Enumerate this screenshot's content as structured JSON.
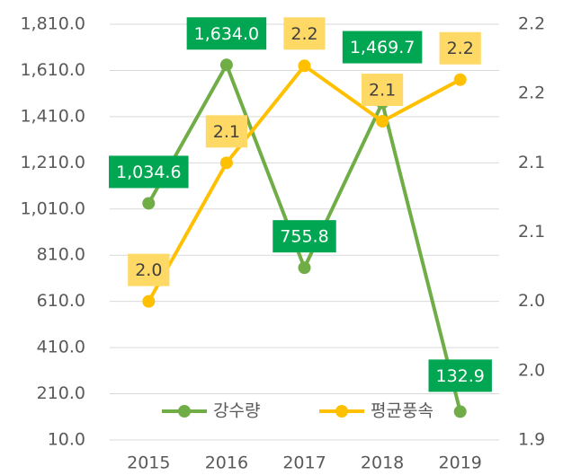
{
  "chart_data": {
    "type": "line",
    "categories": [
      "2015",
      "2016",
      "2017",
      "2018",
      "2019"
    ],
    "series": [
      {
        "name": "강수량",
        "color": "#70ad47",
        "label_color": "#00a651",
        "values": [
          1034.6,
          1634.0,
          755.8,
          1469.7,
          132.9
        ],
        "value_labels": [
          "1,034.6",
          "1,634.0",
          "755.8",
          "1,469.7",
          "132.9"
        ]
      },
      {
        "name": "평균풍속",
        "color": "#ffc000",
        "label_color": "#ffd966",
        "axis": "y2",
        "values": [
          2.0,
          2.1,
          2.17,
          2.13,
          2.16
        ],
        "value_labels": [
          "2.0",
          "2.1",
          "2.2",
          "2.1",
          "2.2"
        ]
      }
    ],
    "ylim": [
      10,
      1810
    ],
    "yticks": [
      {
        "value": 10,
        "label": "10.0"
      },
      {
        "value": 210,
        "label": "210.0"
      },
      {
        "value": 410,
        "label": "410.0"
      },
      {
        "value": 610,
        "label": "610.0"
      },
      {
        "value": 810,
        "label": "810.0"
      },
      {
        "value": 1010,
        "label": "1,010.0"
      },
      {
        "value": 1210,
        "label": "1,210.0"
      },
      {
        "value": 1410,
        "label": "1,410.0"
      },
      {
        "value": 1610,
        "label": "1,610.0"
      },
      {
        "value": 1810,
        "label": "1,810.0"
      }
    ],
    "y2lim": [
      1.9,
      2.2
    ],
    "y2ticks": [
      {
        "value": 1.9,
        "label": "1.9"
      },
      {
        "value": 1.95,
        "label": "2.0"
      },
      {
        "value": 2.0,
        "label": "2.0"
      },
      {
        "value": 2.05,
        "label": "2.1"
      },
      {
        "value": 2.1,
        "label": "2.1"
      },
      {
        "value": 2.15,
        "label": "2.2"
      },
      {
        "value": 2.2,
        "label": "2.2"
      }
    ],
    "grid": true,
    "legend": "bottom"
  }
}
